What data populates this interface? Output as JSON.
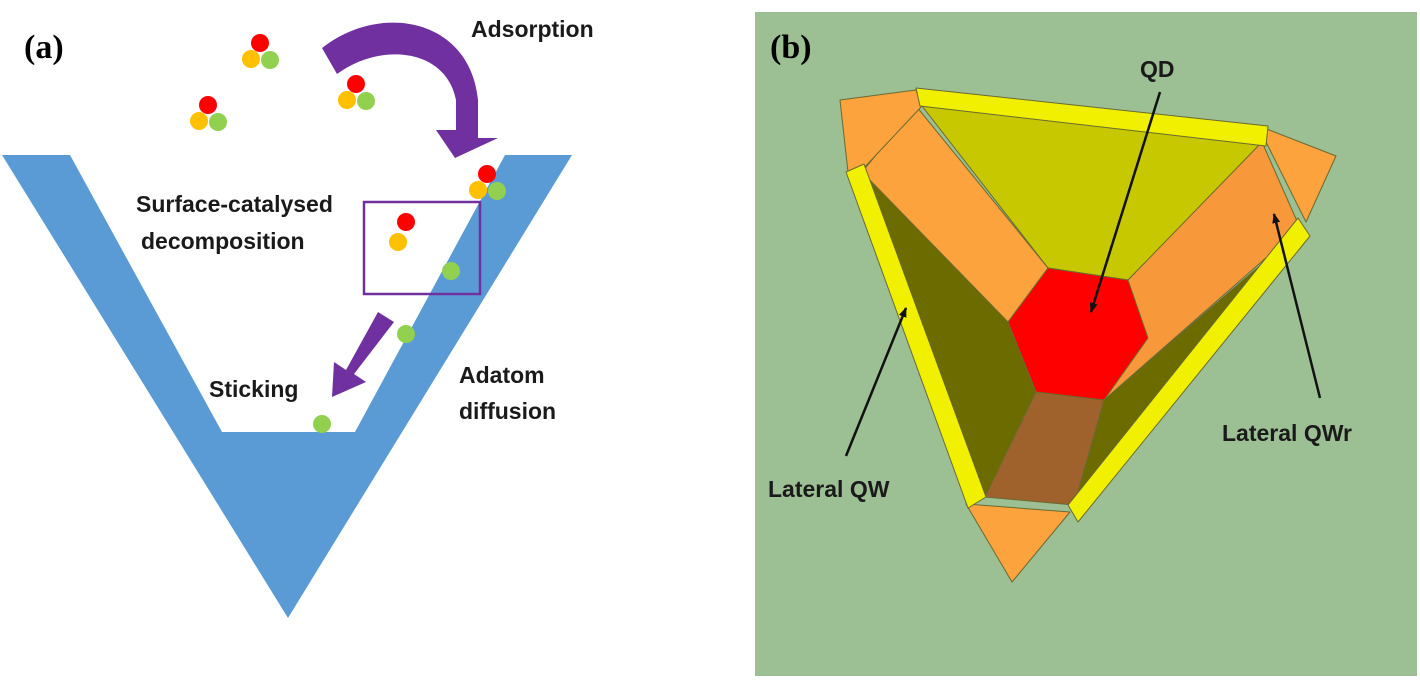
{
  "panel_a": {
    "label": "(a)",
    "labels": {
      "adsorption": "Adsorption",
      "surface_line1": "Surface-catalysed",
      "surface_line2": "decomposition",
      "sticking": "Sticking",
      "adatom_line1": "Adatom",
      "adatom_line2": "diffusion"
    }
  },
  "panel_b": {
    "label": "(b)",
    "labels": {
      "qd": "QD",
      "lateral_qwr": "Lateral QWr",
      "lateral_qw": "Lateral QW"
    }
  },
  "colors": {
    "groove_blue": "#5b9bd5",
    "arrow_purple": "#7030a0",
    "box_purple": "#7030a0",
    "atom_red": "#ff0000",
    "atom_orange": "#ffc000",
    "atom_green": "#92d050",
    "panel_b_background": "#9cbf94",
    "yellow": "#f0f000",
    "orange": "#fca33d",
    "olive_top": "#c8c800",
    "olive_dark": "#6b6b00",
    "qd_red": "#ff0000",
    "brown": "#a0622d"
  }
}
